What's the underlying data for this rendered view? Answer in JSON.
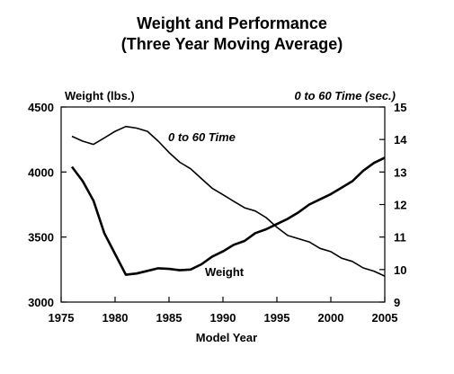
{
  "chart_data": {
    "type": "line",
    "title": "Weight and Performance",
    "subtitle": "(Three Year Moving Average)",
    "xlabel": "Model Year",
    "ylabel_left": "Weight  (lbs.)",
    "ylabel_right": "0 to 60 Time (sec.)",
    "xlim": [
      1975,
      2005
    ],
    "ylim_left": [
      3000,
      4500
    ],
    "ylim_right": [
      9,
      15
    ],
    "x_ticks": [
      1975,
      1980,
      1985,
      1990,
      1995,
      2000,
      2005
    ],
    "y_left_ticks": [
      3000,
      3500,
      4000,
      4500
    ],
    "y_right_ticks": [
      9,
      10,
      11,
      12,
      13,
      14,
      15
    ],
    "grid": false,
    "series": [
      {
        "name": "Weight",
        "axis": "left",
        "color": "#000000",
        "x": [
          1976,
          1977,
          1978,
          1979,
          1980,
          1981,
          1982,
          1983,
          1984,
          1985,
          1986,
          1987,
          1988,
          1989,
          1990,
          1991,
          1992,
          1993,
          1994,
          1995,
          1996,
          1997,
          1998,
          1999,
          2000,
          2001,
          2002,
          2003,
          2004,
          2005
        ],
        "values": [
          4040,
          3930,
          3780,
          3530,
          3370,
          3210,
          3220,
          3240,
          3260,
          3255,
          3245,
          3250,
          3290,
          3350,
          3390,
          3440,
          3470,
          3530,
          3560,
          3600,
          3640,
          3690,
          3750,
          3790,
          3830,
          3880,
          3930,
          4010,
          4070,
          4110
        ]
      },
      {
        "name": "0 to 60 Time",
        "axis": "right",
        "color": "#000000",
        "x": [
          1976,
          1977,
          1978,
          1979,
          1980,
          1981,
          1982,
          1983,
          1984,
          1985,
          1986,
          1987,
          1988,
          1989,
          1990,
          1991,
          1992,
          1993,
          1994,
          1995,
          1996,
          1997,
          1998,
          1999,
          2000,
          2001,
          2002,
          2003,
          2004,
          2005
        ],
        "values": [
          14.1,
          13.95,
          13.85,
          14.05,
          14.25,
          14.4,
          14.35,
          14.25,
          13.95,
          13.6,
          13.3,
          13.1,
          12.8,
          12.5,
          12.3,
          12.1,
          11.9,
          11.8,
          11.6,
          11.3,
          11.05,
          10.95,
          10.85,
          10.65,
          10.55,
          10.35,
          10.25,
          10.05,
          9.95,
          9.8
        ]
      }
    ],
    "annotations": [
      {
        "text": "0 to 60 Time",
        "series": "0 to 60 Time"
      },
      {
        "text": "Weight",
        "series": "Weight"
      }
    ]
  }
}
